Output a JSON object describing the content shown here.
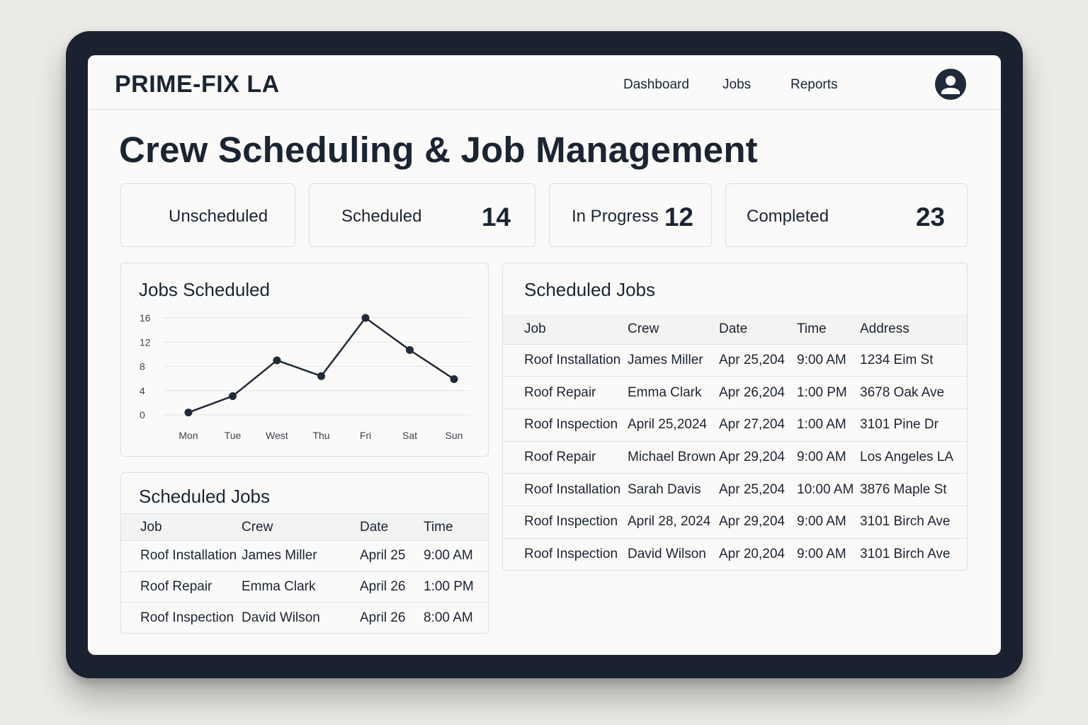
{
  "app": {
    "brand": "PRIME-FIX LA",
    "nav": [
      "Dashboard",
      "Jobs",
      "Reports"
    ],
    "avatar_icon": "user-avatar-icon"
  },
  "page_title": "Crew Scheduling & Job Management",
  "stats": [
    {
      "label": "Unscheduled",
      "value": ""
    },
    {
      "label": "Scheduled",
      "value": "14"
    },
    {
      "label": "In Progress",
      "value": "12"
    },
    {
      "label": "Completed",
      "value": "23"
    }
  ],
  "chart_card": {
    "title": "Jobs Scheduled"
  },
  "chart_data": {
    "type": "line",
    "title": "Jobs Scheduled",
    "categories": [
      "Mon",
      "Tue",
      "West",
      "Thu",
      "Fri",
      "Sat",
      "Sun"
    ],
    "values": [
      0.4,
      3.1,
      9,
      6.4,
      16,
      10.7,
      5.9
    ],
    "yticks": [
      "16",
      "12",
      "8",
      "4",
      "0"
    ],
    "ylim": [
      0,
      16
    ],
    "grid": true,
    "line_color": "#1f2a3a"
  },
  "small_table": {
    "title": "Scheduled Jobs",
    "headers": [
      "Job",
      "Crew",
      "Date",
      "Time"
    ],
    "rows": [
      [
        "Roof Installation",
        "James Miller",
        "April 25",
        "9:00 AM"
      ],
      [
        "Roof Repair",
        "Emma Clark",
        "April 26",
        "1:00 PM"
      ],
      [
        "Roof Inspection",
        "David Wilson",
        "April 26",
        "8:00 AM"
      ]
    ]
  },
  "big_table": {
    "title": "Scheduled Jobs",
    "headers": [
      "Job",
      "Crew",
      "Date",
      "Time",
      "Address"
    ],
    "rows": [
      [
        "Roof Installation",
        "James Miller",
        "Apr 25,204",
        "9:00 AM",
        "1234 Eim St"
      ],
      [
        "Roof Repair",
        "Emma Clark",
        "Apr 26,204",
        "1:00 PM",
        "3678 Oak Ave"
      ],
      [
        "Roof Inspection",
        "April 25,2024",
        "Apr 27,204",
        "1:00 AM",
        "3101 Pine Dr"
      ],
      [
        "Roof Repair",
        "Michael Brown",
        "Apr 29,204",
        "9:00 AM",
        "Los Angeles LA"
      ],
      [
        "Roof Installation",
        "Sarah Davis",
        "Apr 25,204",
        "10:00 AM",
        "3876 Maple St"
      ],
      [
        "Roof Inspection",
        "April 28, 2024",
        "Apr 29,204",
        "9:00 AM",
        "3101 Birch Ave"
      ],
      [
        "Roof Inspection",
        "David Wilson",
        "Apr 20,204",
        "9:00 AM",
        "3101 Birch Ave"
      ]
    ]
  }
}
